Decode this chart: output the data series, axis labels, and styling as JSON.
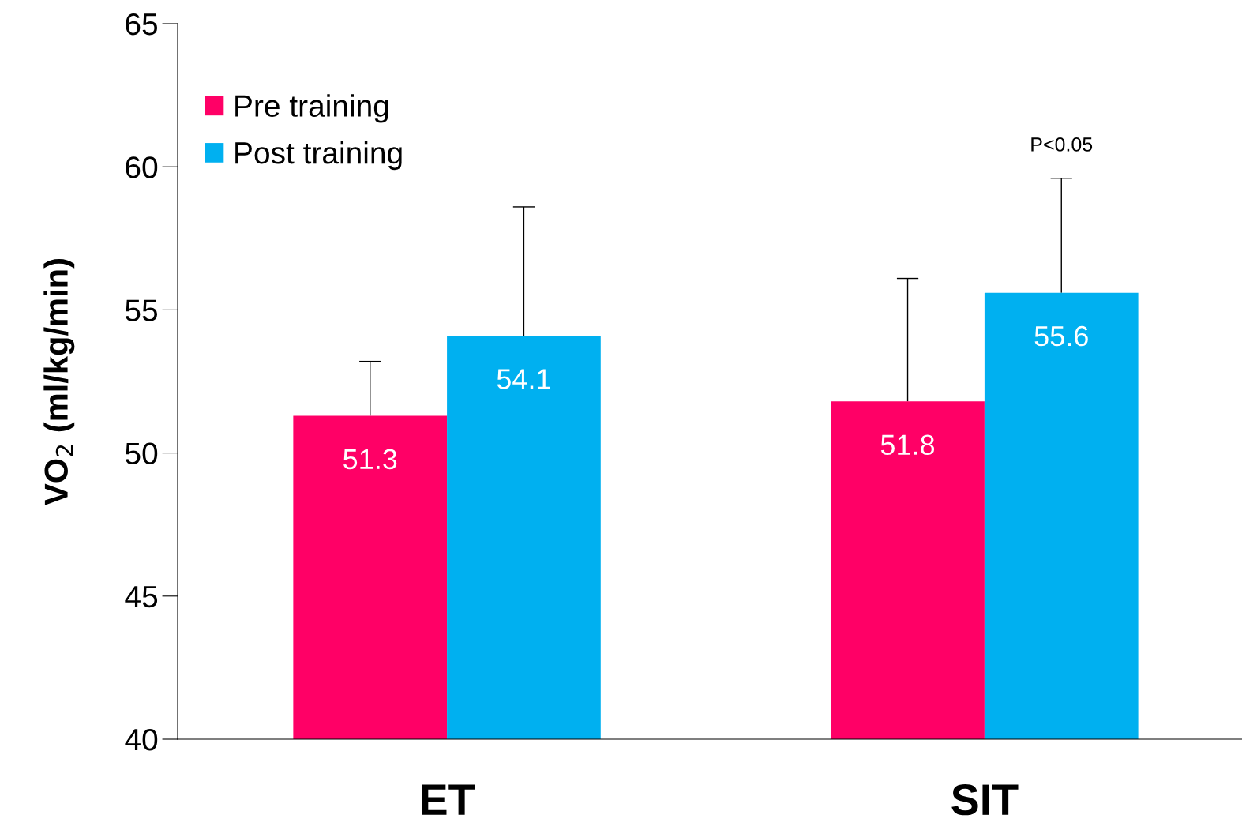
{
  "chart_data": {
    "type": "bar",
    "ylabel": "VO$_{2}$ (ml/kg/min)",
    "categories": [
      "ET",
      "SIT"
    ],
    "series": [
      {
        "name": "Pre training",
        "color": "#ff0066",
        "values": [
          51.3,
          51.8
        ],
        "errors": [
          [
            51.3,
            53.2
          ],
          [
            51.8,
            56.1
          ]
        ]
      },
      {
        "name": "Post training",
        "color": "#00b0f0",
        "values": [
          54.1,
          55.6
        ],
        "errors": [
          [
            54.1,
            58.6
          ],
          [
            55.6,
            59.6
          ]
        ]
      }
    ],
    "ylim": [
      40,
      65
    ],
    "yticks": [
      40,
      45,
      50,
      55,
      60,
      65
    ],
    "data_labels": true,
    "legend": "top left",
    "grid": false,
    "annotations": [
      "P<0.05"
    ]
  }
}
